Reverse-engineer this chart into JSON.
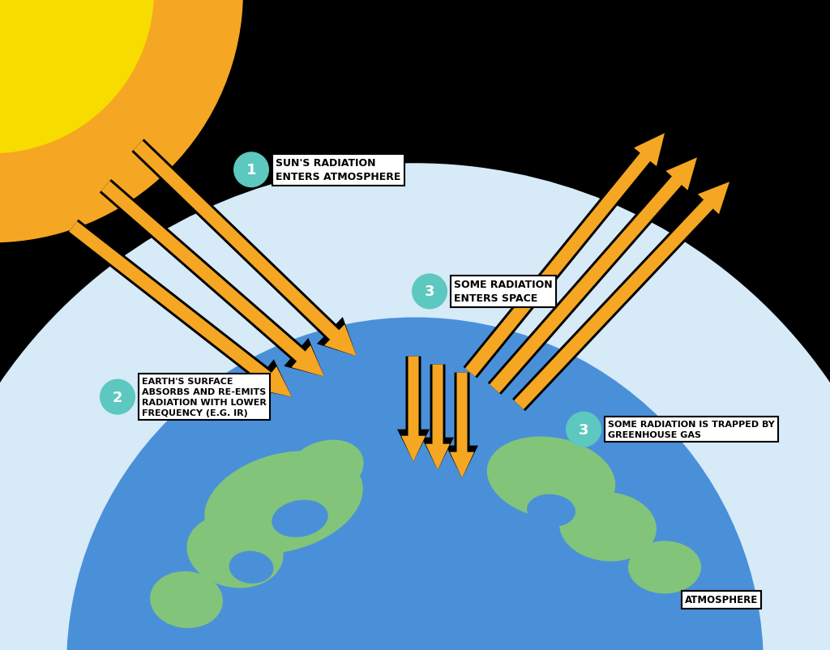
{
  "bg_color": "#000000",
  "sun_outer_color": "#F5A623",
  "sun_inner_color": "#F7DC00",
  "atmosphere_color": "#D6EAF8",
  "earth_ocean_color": "#4A90D9",
  "earth_land_color": "#82C47A",
  "earth_land2_color": "#6BAF65",
  "arrow_color": "#F5A623",
  "arrow_edge": "#000000",
  "teal_color": "#5CC8C0",
  "white": "#FFFFFF",
  "black": "#000000",
  "label1": "SUN'S RADIATION\nENTERS ATMOSPHERE",
  "label2": "EARTH'S SURFACE\nABSORBS AND RE-EMITS\nRADIATION WITH LOWER\nFREQUENCY (E.G. IR)",
  "label3a": "SOME RADIATION\nENTERS SPACE",
  "label3b": "SOME RADIATION IS TRAPPED BY\nGREENHOUSE GAS",
  "label_atm": "ATMOSPHERE",
  "figw": 10.24,
  "figh": 8.03,
  "dpi": 100
}
